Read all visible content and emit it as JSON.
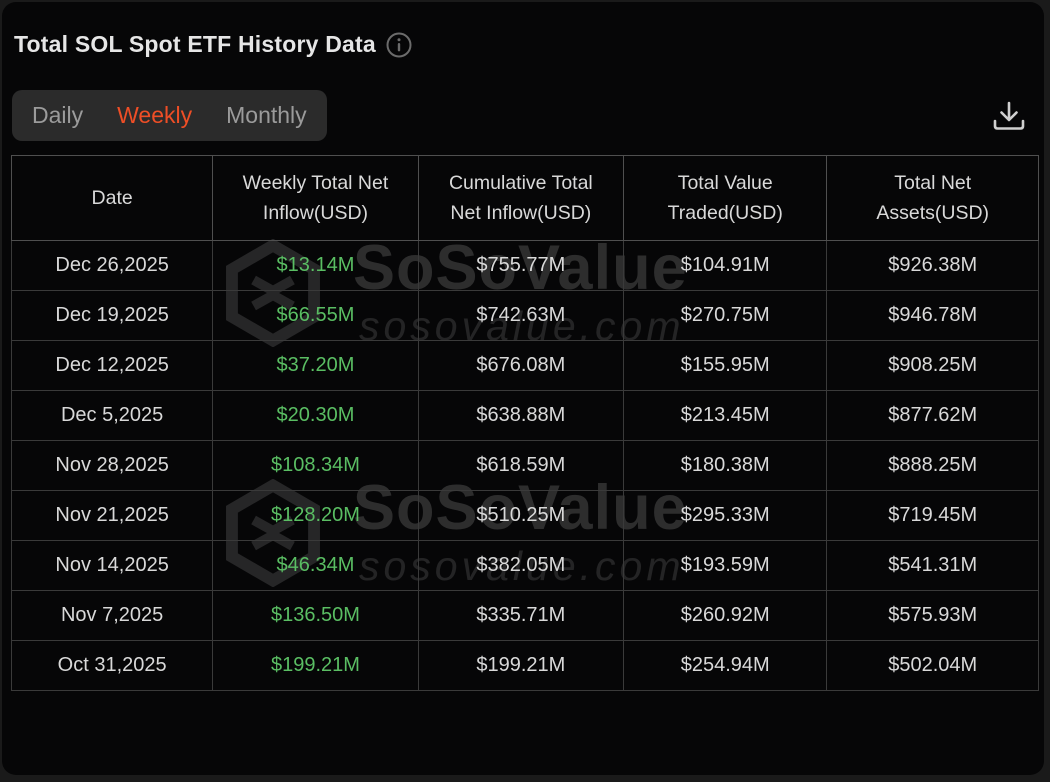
{
  "header": {
    "title": "Total SOL Spot ETF History Data"
  },
  "tabs": {
    "items": [
      {
        "label": "Daily",
        "active": false
      },
      {
        "label": "Weekly",
        "active": true
      },
      {
        "label": "Monthly",
        "active": false
      }
    ]
  },
  "toolbar": {
    "download_icon": "download-icon"
  },
  "watermark": {
    "brand": "SoSoValue",
    "domain": "sosovalue.com"
  },
  "colors": {
    "accent_orange": "#ee4e26",
    "positive_green": "#5abe63",
    "panel_bg": "#060607",
    "page_bg": "#1a1a1a",
    "tabbar_bg": "#2b2b2b"
  },
  "chart_data": {
    "type": "table",
    "columns": [
      "Date",
      "Weekly Total Net Inflow(USD)",
      "Cumulative Total Net Inflow(USD)",
      "Total Value Traded(USD)",
      "Total Net Assets(USD)"
    ],
    "positive_value_column_index": 1,
    "rows": [
      [
        "Dec 26,2025",
        "$13.14M",
        "$755.77M",
        "$104.91M",
        "$926.38M"
      ],
      [
        "Dec 19,2025",
        "$66.55M",
        "$742.63M",
        "$270.75M",
        "$946.78M"
      ],
      [
        "Dec 12,2025",
        "$37.20M",
        "$676.08M",
        "$155.95M",
        "$908.25M"
      ],
      [
        "Dec 5,2025",
        "$20.30M",
        "$638.88M",
        "$213.45M",
        "$877.62M"
      ],
      [
        "Nov 28,2025",
        "$108.34M",
        "$618.59M",
        "$180.38M",
        "$888.25M"
      ],
      [
        "Nov 21,2025",
        "$128.20M",
        "$510.25M",
        "$295.33M",
        "$719.45M"
      ],
      [
        "Nov 14,2025",
        "$46.34M",
        "$382.05M",
        "$193.59M",
        "$541.31M"
      ],
      [
        "Nov 7,2025",
        "$136.50M",
        "$335.71M",
        "$260.92M",
        "$575.93M"
      ],
      [
        "Oct 31,2025",
        "$199.21M",
        "$199.21M",
        "$254.94M",
        "$502.04M"
      ]
    ]
  }
}
